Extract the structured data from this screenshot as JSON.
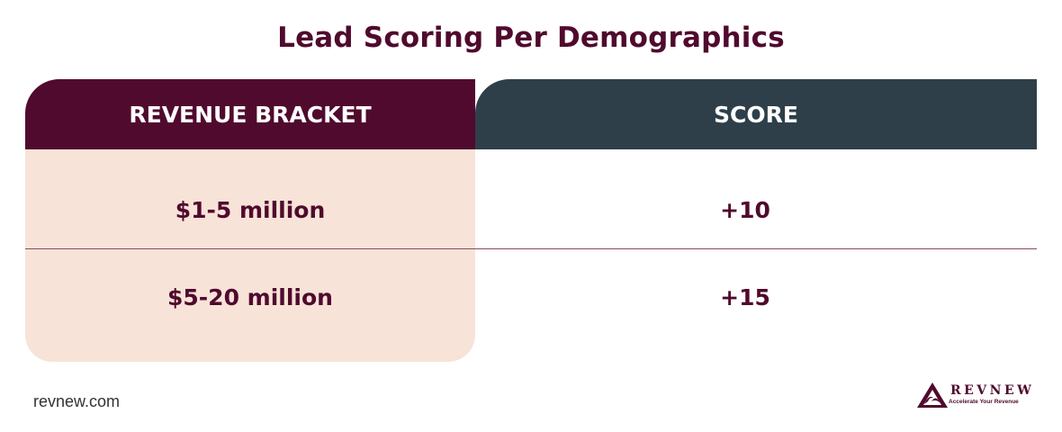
{
  "title": "Lead Scoring Per Demographics",
  "table": {
    "headers": [
      "REVENUE BRACKET",
      "SCORE"
    ],
    "rows": [
      {
        "bracket": "$1-5 million",
        "score": "+10"
      },
      {
        "bracket": "$5-20 million",
        "score": "+15"
      }
    ]
  },
  "footer": {
    "url": "revnew.com",
    "logo_name": "REVNEW",
    "logo_tagline": "Accelerate Your Revenue"
  },
  "colors": {
    "brand_maroon": "#500a2d",
    "header_slate": "#2e3f49",
    "bracket_bg": "#f7e3d8"
  }
}
